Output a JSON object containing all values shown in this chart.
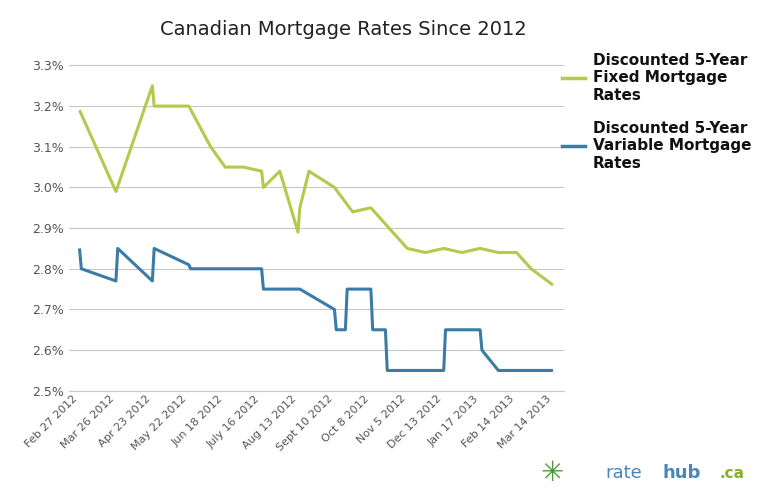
{
  "title": "Canadian Mortgage Rates Since 2012",
  "fixed_label": "Discounted 5-Year\nFixed Mortgage\nRates",
  "variable_label": "Discounted 5-Year\nVariable Mortgage\nRates",
  "fixed_color": "#b5c94c",
  "variable_color": "#3a7ca5",
  "ylim": [
    2.5,
    3.35
  ],
  "yticks": [
    2.5,
    2.6,
    2.7,
    2.8,
    2.9,
    3.0,
    3.1,
    3.2,
    3.3
  ],
  "xlabel_dates": [
    "Feb 27 2012",
    "Mar 26 2012",
    "Apr 23 2012",
    "May 22 2012",
    "Jun 18 2012",
    "July 16 2012",
    "Aug 13 2012",
    "Sept 10 2012",
    "Oct 8 2012",
    "Nov 5 2012",
    "Dec 13 2012",
    "Jan 17 2013",
    "Feb 14 2013",
    "Mar 14 2013"
  ],
  "fixed_x": [
    0,
    1,
    2,
    2.05,
    3,
    3.6,
    4,
    4.5,
    5,
    5.05,
    5.5,
    6,
    6.05,
    6.3,
    7,
    7.5,
    8,
    8.5,
    9,
    9.5,
    10,
    10.5,
    11,
    11.5,
    12,
    12.4,
    13
  ],
  "fixed_y": [
    3.19,
    2.99,
    3.25,
    3.2,
    3.2,
    3.1,
    3.05,
    3.05,
    3.04,
    3.0,
    3.04,
    2.89,
    2.95,
    3.04,
    3.0,
    2.94,
    2.95,
    2.9,
    2.85,
    2.84,
    2.85,
    2.84,
    2.85,
    2.84,
    2.84,
    2.8,
    2.76
  ],
  "variable_x": [
    0,
    0.05,
    1,
    1.05,
    2,
    2.05,
    3,
    3.05,
    4,
    5,
    5.05,
    6,
    6.05,
    7,
    7.05,
    7.3,
    7.35,
    8,
    8.05,
    8.4,
    8.45,
    9,
    9.5,
    10,
    10.05,
    11,
    11.05,
    11.5,
    12,
    13
  ],
  "variable_y": [
    2.85,
    2.8,
    2.77,
    2.85,
    2.77,
    2.85,
    2.81,
    2.8,
    2.8,
    2.8,
    2.75,
    2.75,
    2.75,
    2.7,
    2.65,
    2.65,
    2.75,
    2.75,
    2.65,
    2.65,
    2.55,
    2.55,
    2.55,
    2.55,
    2.65,
    2.65,
    2.6,
    2.55,
    2.55,
    2.55
  ],
  "background_color": "#ffffff",
  "grid_color": "#c8c8c8",
  "tick_color": "#555555",
  "title_fontsize": 14,
  "tick_fontsize": 8,
  "legend_fontsize": 11
}
